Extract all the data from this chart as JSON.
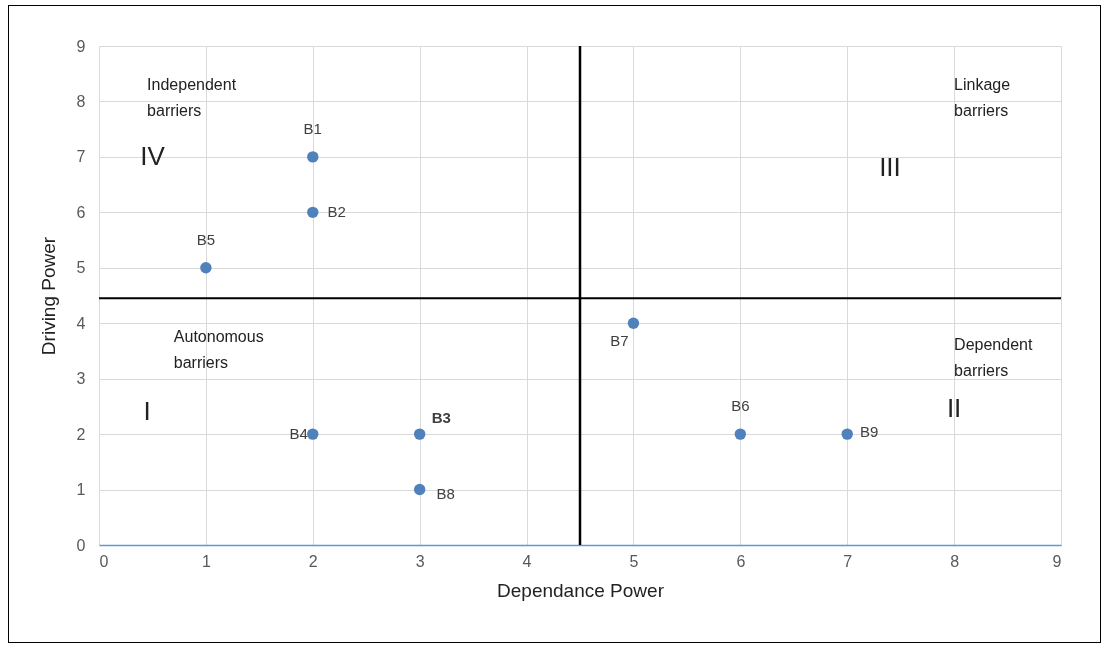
{
  "chart_data": {
    "type": "scatter",
    "xlabel": "Dependance Power",
    "ylabel": "Driving Power",
    "x": [
      2,
      2,
      3,
      2,
      1,
      6,
      5,
      3,
      7
    ],
    "series": [
      {
        "color": "#4f81bd",
        "values": [
          7,
          6,
          2,
          2,
          5,
          2,
          4,
          1,
          2
        ]
      }
    ],
    "xlim": [
      0,
      9
    ],
    "ylim": [
      0,
      9
    ],
    "xticks": [
      0,
      1,
      2,
      3,
      4,
      5,
      6,
      7,
      8,
      9
    ],
    "yticks": [
      0,
      1,
      2,
      3,
      4,
      5,
      6,
      7,
      8,
      9
    ],
    "grid": true,
    "marker": "circle",
    "ref_lines": [
      {
        "axis": "x",
        "value": 4.5,
        "color": "#000000"
      },
      {
        "axis": "y",
        "value": 4.45,
        "color": "#000000"
      }
    ],
    "annotations": [
      {
        "text": "B1",
        "x": 2,
        "y": 7
      },
      {
        "text": "B2",
        "x": 2,
        "y": 6
      },
      {
        "text": "B3",
        "x": 3,
        "y": 2
      },
      {
        "text": "B4",
        "x": 2,
        "y": 2
      },
      {
        "text": "B5",
        "x": 1,
        "y": 5
      },
      {
        "text": "B6",
        "x": 6,
        "y": 2
      },
      {
        "text": "B7",
        "x": 5,
        "y": 4
      },
      {
        "text": "B8",
        "x": 3,
        "y": 1
      },
      {
        "text": "B9",
        "x": 7,
        "y": 2
      },
      "Independent barriers",
      "IV",
      "Linkage barriers",
      "III",
      "Autonomous barriers",
      "I",
      "Dependent barriers",
      "II"
    ]
  }
}
